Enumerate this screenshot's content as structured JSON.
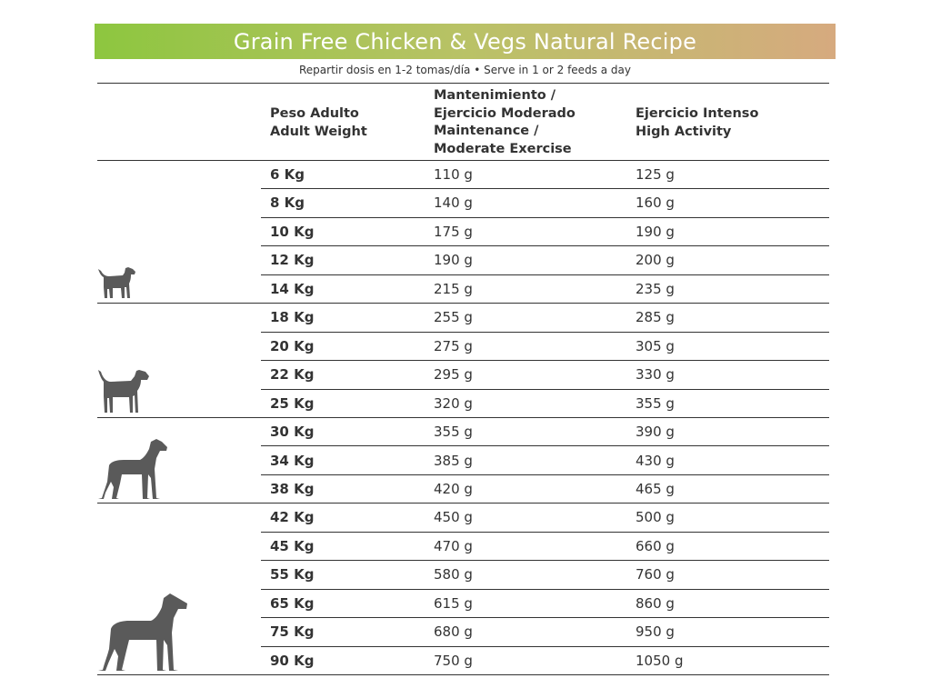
{
  "title": "Grain Free Chicken & Vegs Natural Recipe",
  "subtitle": "Repartir dosis en 1-2 tomas/día • Serve in 1 or 2 feeds a day",
  "colors": {
    "banner_start": "#8dc63f",
    "banner_end": "#d6aa7f",
    "rule": "#333333",
    "dog": "#5a5a5a"
  },
  "headers": {
    "weight": [
      "Peso Adulto",
      "Adult Weight"
    ],
    "maintenance": [
      "Mantenimiento /",
      "Ejercicio Moderado",
      "Maintenance /",
      "Moderate Exercise"
    ],
    "intense": [
      "Ejercicio Intenso",
      "High Activity"
    ]
  },
  "dog_icons": [
    "small-dog-icon",
    "medium-dog-icon",
    "large-dog-icon",
    "giant-dog-icon"
  ],
  "rows": [
    {
      "weight": "6 Kg",
      "maintenance": "110 g",
      "intense": "125 g"
    },
    {
      "weight": "8 Kg",
      "maintenance": "140 g",
      "intense": "160 g"
    },
    {
      "weight": "10 Kg",
      "maintenance": "175 g",
      "intense": "190 g"
    },
    {
      "weight": "12 Kg",
      "maintenance": "190 g",
      "intense": "200 g"
    },
    {
      "weight": "14 Kg",
      "maintenance": "215 g",
      "intense": "235 g"
    },
    {
      "weight": "18 Kg",
      "maintenance": "255 g",
      "intense": "285 g"
    },
    {
      "weight": "20 Kg",
      "maintenance": "275 g",
      "intense": "305 g"
    },
    {
      "weight": "22 Kg",
      "maintenance": "295 g",
      "intense": "330 g"
    },
    {
      "weight": "25 Kg",
      "maintenance": "320 g",
      "intense": "355 g"
    },
    {
      "weight": "30 Kg",
      "maintenance": "355 g",
      "intense": "390 g"
    },
    {
      "weight": "34 Kg",
      "maintenance": "385 g",
      "intense": "430 g"
    },
    {
      "weight": "38 Kg",
      "maintenance": "420 g",
      "intense": "465 g"
    },
    {
      "weight": "42 Kg",
      "maintenance": "450 g",
      "intense": "500 g"
    },
    {
      "weight": "45 Kg",
      "maintenance": "470 g",
      "intense": "660 g"
    },
    {
      "weight": "55 Kg",
      "maintenance": "580 g",
      "intense": "760 g"
    },
    {
      "weight": "65 Kg",
      "maintenance": "615 g",
      "intense": "860 g"
    },
    {
      "weight": "75 Kg",
      "maintenance": "680 g",
      "intense": "950 g"
    },
    {
      "weight": "90 Kg",
      "maintenance": "750 g",
      "intense": "1050 g"
    }
  ]
}
